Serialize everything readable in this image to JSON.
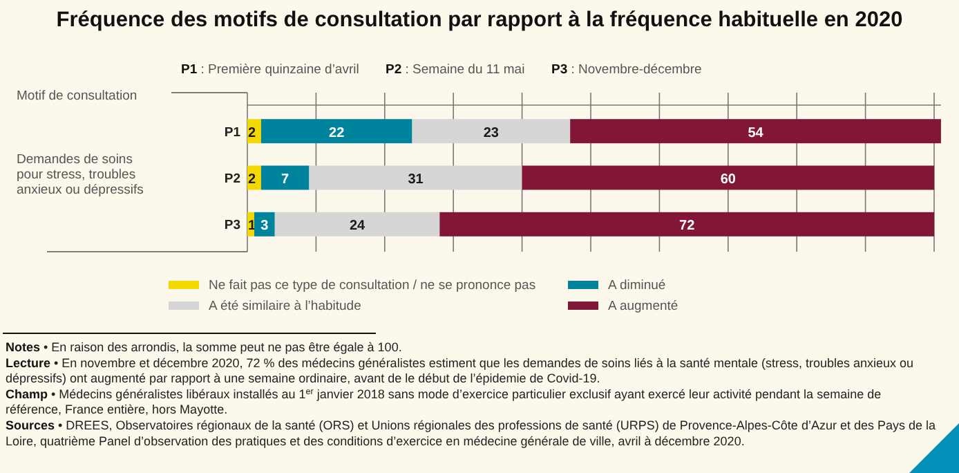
{
  "chart_data": {
    "type": "bar",
    "orientation": "horizontal",
    "stacked": true,
    "title": "Fréquence des motifs de consultation par rapport à la fréquence habituelle en 2020",
    "categories": [
      "P1",
      "P2",
      "P3"
    ],
    "series": [
      {
        "name": "Ne fait pas ce type de consultation / ne se prononce pas",
        "color": "#f5d800",
        "values": [
          2,
          2,
          1
        ]
      },
      {
        "name": "A diminué",
        "color": "#00849e",
        "values": [
          22,
          7,
          3
        ]
      },
      {
        "name": "A été similaire à l’habitude",
        "color": "#d6d6d6",
        "values": [
          23,
          31,
          24
        ]
      },
      {
        "name": "A augmenté",
        "color": "#821636",
        "values": [
          54,
          60,
          72
        ]
      }
    ],
    "xlim": [
      0,
      101
    ],
    "xticks": [
      {
        "value": 0,
        "label": null
      },
      {
        "value": 10,
        "label": null
      },
      {
        "value": 20,
        "label": null
      },
      {
        "value": 30,
        "label": null
      },
      {
        "value": 40,
        "label": null
      },
      {
        "value": 50,
        "label": null
      },
      {
        "value": 60,
        "label": null
      },
      {
        "value": 70,
        "label": null
      },
      {
        "value": 80,
        "label": null
      },
      {
        "value": 90,
        "label": null
      },
      {
        "value": 100,
        "label": null
      }
    ],
    "grid": "x",
    "data_labels": true,
    "legend": "bottom",
    "annotations": [
      "Motif de consultation",
      "Demandes de soins pour stress, troubles anxieux ou dépressifs",
      "P1 : Première quinzaine d’avril",
      "P2 : Semaine du 11 mai",
      "P3 : Novembre-décembre",
      "Notes • En raison des arrondis, la somme peut ne pas être égale à 100.",
      "Lecture • En novembre et décembre 2020, 72 % des médecins généralistes estiment que les demandes de soins liés à la santé mentale (stress, troubles anxieux ou dépressifs) ont augmenté par rapport à une semaine ordinaire, avant de le début de l’épidemie de Covid-19.",
      "Champ • Médecins généralistes libéraux installés au 1$^{er}$ janvier 2018 sans mode d’exercice particulier exclusif ayant exercé leur activité pendant la semaine de référence, France entière, hors Mayotte.",
      "Sources • DREES, Observatoires régionaux de la santé (ORS) et Unions régionales des professions de santé (URPS) de Provence-Alpes-Côte d’Azur et des Pays de la Loire, quatrième Panel d’observation des pratiques et des conditions d’exercice en médecine générale de ville, avril à décembre 2020."
    ]
  }
}
